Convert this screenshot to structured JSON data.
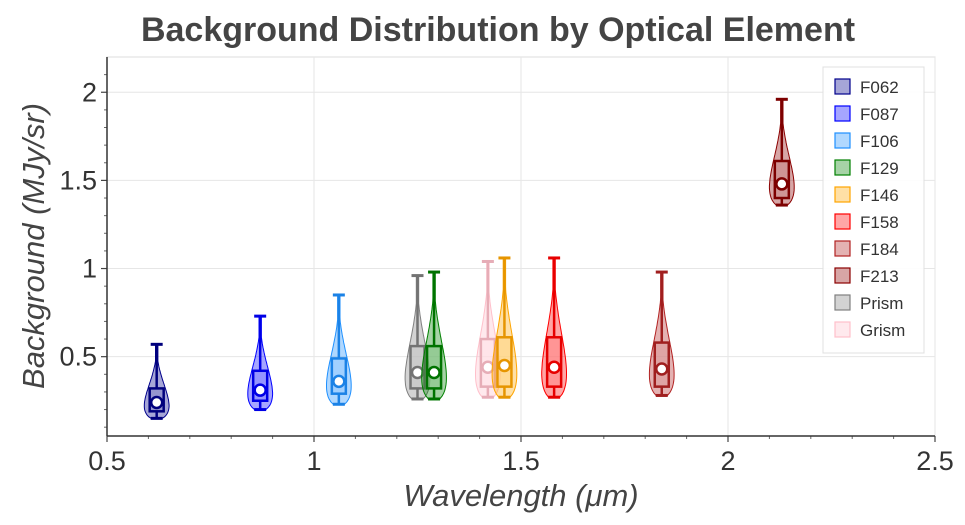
{
  "chart_data": {
    "type": "violin",
    "title": "Background Distribution by Optical Element",
    "xlabel": "Wavelength (μm)",
    "ylabel": "Background (MJy/sr)",
    "xlim": [
      0.5,
      2.5
    ],
    "ylim": [
      0.05,
      2.2
    ],
    "x_ticks": [
      {
        "value": 0.5,
        "label": "0.5"
      },
      {
        "value": 1,
        "label": "1"
      },
      {
        "value": 1.5,
        "label": "1.5"
      },
      {
        "value": 2,
        "label": "2"
      },
      {
        "value": 2.5,
        "label": "2.5"
      }
    ],
    "y_ticks": [
      {
        "value": 0.5,
        "label": "0.5"
      },
      {
        "value": 1,
        "label": "1"
      },
      {
        "value": 1.5,
        "label": "1.5"
      },
      {
        "value": 2,
        "label": "2"
      }
    ],
    "legend_position": "top-right",
    "grid": true,
    "series": [
      {
        "name": "F062",
        "wavelength": 0.62,
        "color": "#00008b",
        "min": 0.15,
        "q1": 0.19,
        "median": 0.24,
        "q3": 0.32,
        "max": 0.57
      },
      {
        "name": "F087",
        "wavelength": 0.87,
        "color": "#0000ff",
        "min": 0.2,
        "q1": 0.25,
        "median": 0.31,
        "q3": 0.42,
        "max": 0.73
      },
      {
        "name": "F106",
        "wavelength": 1.06,
        "color": "#1e90ff",
        "min": 0.23,
        "q1": 0.29,
        "median": 0.36,
        "q3": 0.49,
        "max": 0.85
      },
      {
        "name": "F129",
        "wavelength": 1.29,
        "color": "#008000",
        "min": 0.26,
        "q1": 0.32,
        "median": 0.41,
        "q3": 0.56,
        "max": 0.98
      },
      {
        "name": "F146",
        "wavelength": 1.46,
        "color": "#ffa500",
        "min": 0.27,
        "q1": 0.33,
        "median": 0.45,
        "q3": 0.61,
        "max": 1.06
      },
      {
        "name": "F158",
        "wavelength": 1.58,
        "color": "#ff0000",
        "min": 0.27,
        "q1": 0.33,
        "median": 0.44,
        "q3": 0.61,
        "max": 1.06
      },
      {
        "name": "F184",
        "wavelength": 1.84,
        "color": "#b22222",
        "min": 0.28,
        "q1": 0.33,
        "median": 0.43,
        "q3": 0.58,
        "max": 0.98
      },
      {
        "name": "F213",
        "wavelength": 2.13,
        "color": "#8b0000",
        "min": 1.36,
        "q1": 1.4,
        "median": 1.48,
        "q3": 1.61,
        "max": 1.96
      },
      {
        "name": "Prism",
        "wavelength": 1.25,
        "color": "#808080",
        "min": 0.26,
        "q1": 0.32,
        "median": 0.41,
        "q3": 0.56,
        "max": 0.96
      },
      {
        "name": "Grism",
        "wavelength": 1.42,
        "color": "#ffc0cb",
        "min": 0.27,
        "q1": 0.33,
        "median": 0.44,
        "q3": 0.6,
        "max": 1.04
      }
    ]
  }
}
